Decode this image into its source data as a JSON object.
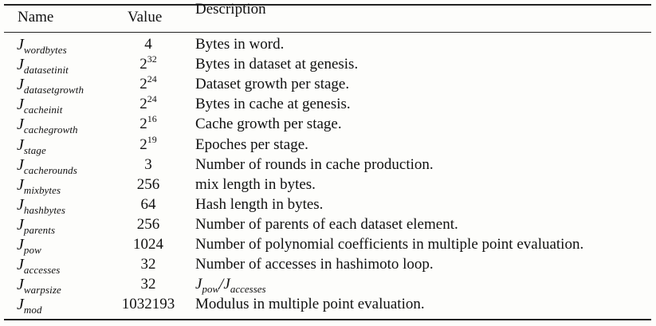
{
  "table": {
    "headers": {
      "name": "Name",
      "value": "Value",
      "description": "Description"
    },
    "rows": [
      {
        "symbol": "J",
        "subscript": "wordbytes",
        "base": "4",
        "exp": "",
        "description": "Bytes in word."
      },
      {
        "symbol": "J",
        "subscript": "datasetinit",
        "base": "2",
        "exp": "32",
        "description": "Bytes in dataset at genesis."
      },
      {
        "symbol": "J",
        "subscript": "datasetgrowth",
        "base": "2",
        "exp": "24",
        "description": "Dataset growth per stage."
      },
      {
        "symbol": "J",
        "subscript": "cacheinit",
        "base": "2",
        "exp": "24",
        "description": "Bytes in cache at genesis."
      },
      {
        "symbol": "J",
        "subscript": "cachegrowth",
        "base": "2",
        "exp": "16",
        "description": "Cache growth per stage."
      },
      {
        "symbol": "J",
        "subscript": "stage",
        "base": "2",
        "exp": "19",
        "description": "Epoches per stage."
      },
      {
        "symbol": "J",
        "subscript": "cacherounds",
        "base": "3",
        "exp": "",
        "description": "Number of rounds in cache production."
      },
      {
        "symbol": "J",
        "subscript": "mixbytes",
        "base": "256",
        "exp": "",
        "description": "mix length in bytes."
      },
      {
        "symbol": "J",
        "subscript": "hashbytes",
        "base": "64",
        "exp": "",
        "description": "Hash length in bytes."
      },
      {
        "symbol": "J",
        "subscript": "parents",
        "base": "256",
        "exp": "",
        "description": "Number of parents of each dataset element."
      },
      {
        "symbol": "J",
        "subscript": "pow",
        "base": "1024",
        "exp": "",
        "description": "Number of polynomial coefficients in multiple point evaluation."
      },
      {
        "symbol": "J",
        "subscript": "accesses",
        "base": "32",
        "exp": "",
        "description": "Number of accesses in hashimoto loop."
      },
      {
        "symbol": "J",
        "subscript": "warpsize",
        "base": "32",
        "exp": "",
        "description": "",
        "formula": {
          "num_sym": "J",
          "num_sub": "pow",
          "slash": "/",
          "den_sym": "J",
          "den_sub": "accesses"
        }
      },
      {
        "symbol": "J",
        "subscript": "mod",
        "base": "1032193",
        "exp": "",
        "description": "Modulus in multiple point evaluation."
      }
    ]
  }
}
